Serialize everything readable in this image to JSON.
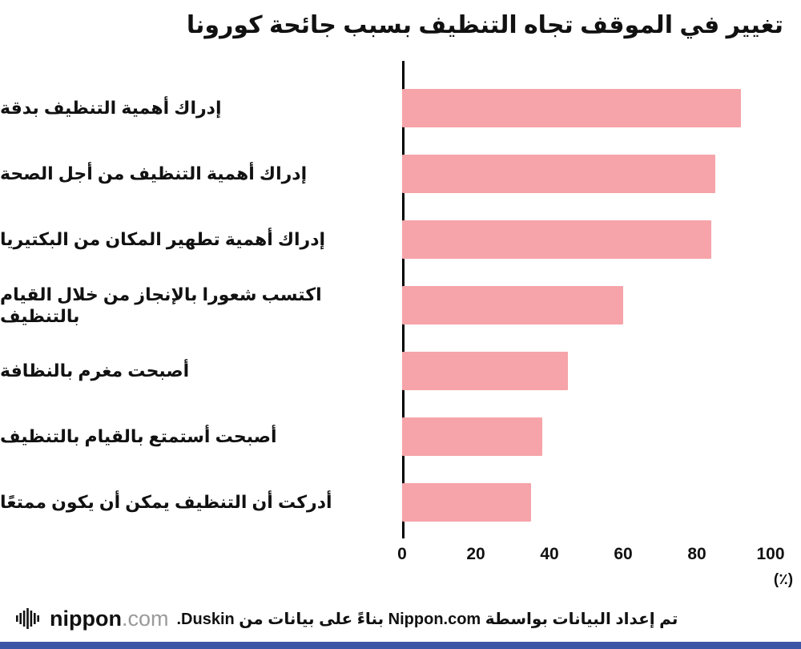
{
  "chart_data": {
    "type": "bar",
    "orientation": "horizontal",
    "title": "تغيير في الموقف تجاه التنظيف بسبب جائحة كورونا",
    "categories": [
      "إدراك أهمية التنظيف بدقة",
      "إدراك أهمية التنظيف من أجل الصحة",
      "إدراك أهمية تطهير المكان من البكتيريا",
      "اكتسب شعورا بالإنجاز من خلال القيام بالتنظيف",
      "أصبحت مغرم بالنظافة",
      "أصبحت أستمتع بالقيام بالتنظيف",
      "أدركت أن التنظيف يمكن أن يكون ممتعًا"
    ],
    "values": [
      92,
      85,
      84,
      60,
      45,
      38,
      35
    ],
    "xlim": [
      0,
      100
    ],
    "xticks": [
      "0",
      "20",
      "40",
      "60",
      "80",
      "100"
    ],
    "x_unit_label": "(٪)",
    "bar_color": "#F6A4A9",
    "axis_color": "#000000",
    "grid": false,
    "legend": "none"
  },
  "footer": {
    "logo_bold": "nippon",
    "logo_light": ".com",
    "source_text": "تم إعداد البيانات بواسطة Nippon.com بناءً على بيانات من Duskin.",
    "accent_bar_color": "#3A55A5"
  }
}
